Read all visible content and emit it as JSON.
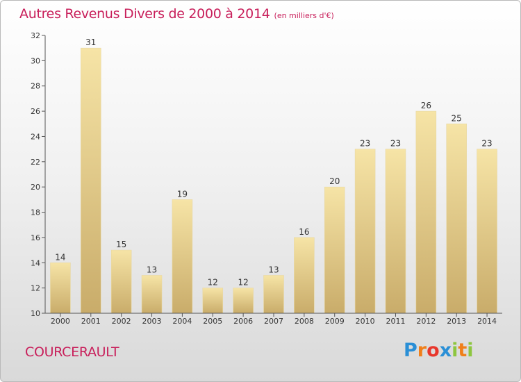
{
  "chart_data": {
    "type": "bar",
    "title": "Autres Revenus Divers de 2000 à 2014",
    "subtitle": "(en milliers d'€)",
    "categories": [
      "2000",
      "2001",
      "2002",
      "2003",
      "2004",
      "2005",
      "2006",
      "2007",
      "2008",
      "2009",
      "2010",
      "2011",
      "2012",
      "2013",
      "2014"
    ],
    "values": [
      14,
      31,
      15,
      13,
      19,
      12,
      12,
      13,
      16,
      20,
      23,
      23,
      26,
      25,
      23
    ],
    "ylim": [
      10,
      32
    ],
    "yticks": [
      10,
      12,
      14,
      16,
      18,
      20,
      22,
      24,
      26,
      28,
      30,
      32
    ],
    "xlabel": "",
    "ylabel": "",
    "grid": false,
    "legend": "none",
    "data_labels": true
  },
  "commune": "COURCERAULT",
  "brand": {
    "name": "Proxiti",
    "letters": [
      "P",
      "r",
      "o",
      "x",
      "i",
      "t",
      "i"
    ],
    "letter_colors": [
      "#2a8fd6",
      "#f07f1a",
      "#e8372c",
      "#2a8fd6",
      "#8dc63f",
      "#f07f1a",
      "#8dc63f"
    ]
  },
  "colors": {
    "title": "#c81e5a",
    "bar_light": "#f6e4a6",
    "bar_dark": "#c9ac6a",
    "axis": "#555555"
  }
}
